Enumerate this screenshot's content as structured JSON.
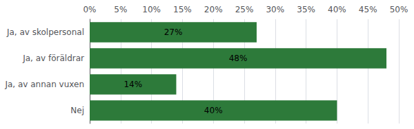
{
  "chart_data": {
    "type": "bar",
    "orientation": "horizontal",
    "categories": [
      "Ja, av skolpersonal",
      "Ja, av föräldrar",
      "Ja, av annan vuxen",
      "Nej"
    ],
    "values": [
      27,
      48,
      14,
      40
    ],
    "value_labels": [
      "27%",
      "48%",
      "14%",
      "40%"
    ],
    "data_labels": true,
    "color": "#2d7a3a",
    "xlim": [
      0,
      50
    ],
    "xticks": [
      {
        "value": 0,
        "label": "0%"
      },
      {
        "value": 5,
        "label": "5%"
      },
      {
        "value": 10,
        "label": "10%"
      },
      {
        "value": 15,
        "label": "15%"
      },
      {
        "value": 20,
        "label": "20%"
      },
      {
        "value": 25,
        "label": "25%"
      },
      {
        "value": 30,
        "label": "30%"
      },
      {
        "value": 35,
        "label": "35%"
      },
      {
        "value": 40,
        "label": "40%"
      },
      {
        "value": 45,
        "label": "45%"
      },
      {
        "value": 50,
        "label": "50%"
      }
    ],
    "grid": true
  }
}
